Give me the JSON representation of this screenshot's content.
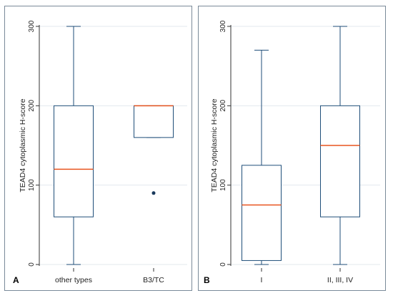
{
  "panels": [
    {
      "letter": "A"
    },
    {
      "letter": "B"
    }
  ],
  "colors": {
    "box_edge": "#1f4e79",
    "median": "#e8541f",
    "outlier": "#1a3a5c",
    "grid": "#e3e8ee",
    "frame": "#7a8a99"
  },
  "chart_data": [
    {
      "type": "box",
      "title": "",
      "xlabel": "",
      "ylabel": "TEAD4 cytoplasmic H-score",
      "ylim": [
        0,
        300
      ],
      "yticks": [
        0,
        100,
        200,
        300
      ],
      "grid": true,
      "categories": [
        "other types",
        "B3/TC"
      ],
      "boxes": [
        {
          "min": 0,
          "q1": 60,
          "median": 120,
          "q3": 200,
          "max": 300,
          "outliers": []
        },
        {
          "min": 160,
          "q1": 160,
          "median": 200,
          "q3": 200,
          "max": 200,
          "outliers": [
            90
          ]
        }
      ]
    },
    {
      "type": "box",
      "title": "",
      "xlabel": "",
      "ylabel": "TEAD4 cytoplasmic H-score",
      "ylim": [
        0,
        300
      ],
      "yticks": [
        0,
        100,
        200,
        300
      ],
      "grid": true,
      "categories": [
        "I",
        "II, III, IV"
      ],
      "boxes": [
        {
          "min": 0,
          "q1": 5,
          "median": 75,
          "q3": 125,
          "max": 270,
          "outliers": []
        },
        {
          "min": 0,
          "q1": 60,
          "median": 150,
          "q3": 200,
          "max": 300,
          "outliers": []
        }
      ]
    }
  ]
}
